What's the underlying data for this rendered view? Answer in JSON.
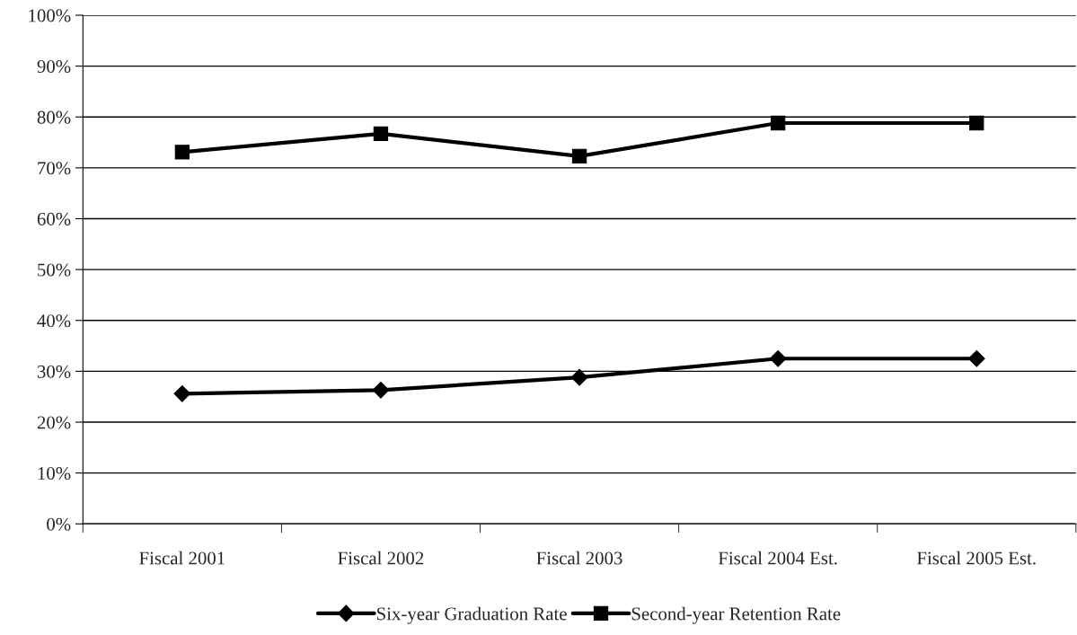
{
  "chart_data": {
    "type": "line",
    "categories": [
      "Fiscal 2001",
      "Fiscal 2002",
      "Fiscal 2003",
      "Fiscal 2004 Est.",
      "Fiscal 2005 Est."
    ],
    "series": [
      {
        "name": "Six-year Graduation Rate",
        "color": "#000000",
        "marker": "diamond",
        "values": [
          25.6,
          26.3,
          28.8,
          32.5,
          32.5
        ]
      },
      {
        "name": "Second-year Retention Rate",
        "color": "#000000",
        "marker": "square",
        "values": [
          73.1,
          76.7,
          72.3,
          78.8,
          78.8
        ]
      }
    ],
    "ylim": [
      0,
      100
    ],
    "yticks": [
      {
        "value": 0,
        "label": "0%"
      },
      {
        "value": 10,
        "label": "10%"
      },
      {
        "value": 20,
        "label": "20%"
      },
      {
        "value": 30,
        "label": "30%"
      },
      {
        "value": 40,
        "label": "40%"
      },
      {
        "value": 50,
        "label": "50%"
      },
      {
        "value": 60,
        "label": "60%"
      },
      {
        "value": 70,
        "label": "70%"
      },
      {
        "value": 80,
        "label": "80%"
      },
      {
        "value": 90,
        "label": "90%"
      },
      {
        "value": 100,
        "label": "100%"
      }
    ],
    "grid": "y",
    "legend": "bottom",
    "line_style": "solid"
  }
}
